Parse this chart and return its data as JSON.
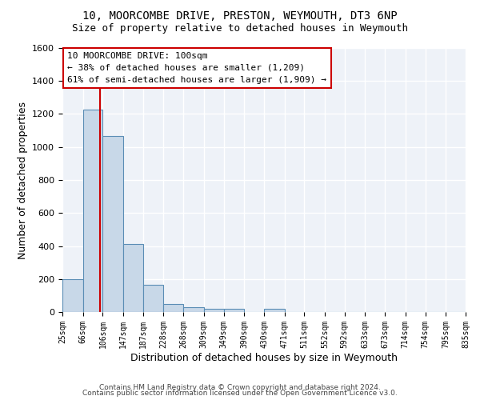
{
  "title1": "10, MOORCOMBE DRIVE, PRESTON, WEYMOUTH, DT3 6NP",
  "title2": "Size of property relative to detached houses in Weymouth",
  "xlabel": "Distribution of detached houses by size in Weymouth",
  "ylabel": "Number of detached properties",
  "bin_edges": [
    25,
    66,
    106,
    147,
    187,
    228,
    268,
    309,
    349,
    390,
    430,
    471,
    511,
    552,
    592,
    633,
    673,
    714,
    754,
    795,
    835
  ],
  "bar_heights": [
    200,
    1225,
    1065,
    410,
    165,
    48,
    28,
    18,
    18,
    0,
    18,
    0,
    0,
    0,
    0,
    0,
    0,
    0,
    0,
    0
  ],
  "bar_color": "#c8d8e8",
  "bar_edge_color": "#5a8db5",
  "red_line_x": 100,
  "annotation_line1": "10 MOORCOMBE DRIVE: 100sqm",
  "annotation_line2": "← 38% of detached houses are smaller (1,209)",
  "annotation_line3": "61% of semi-detached houses are larger (1,909) →",
  "annotation_box_color": "#ffffff",
  "annotation_box_edge_color": "#cc0000",
  "ylim": [
    0,
    1600
  ],
  "yticks": [
    0,
    200,
    400,
    600,
    800,
    1000,
    1200,
    1400,
    1600
  ],
  "background_color": "#eef2f8",
  "grid_color": "#ffffff",
  "footer1": "Contains HM Land Registry data © Crown copyright and database right 2024.",
  "footer2": "Contains public sector information licensed under the Open Government Licence v3.0."
}
